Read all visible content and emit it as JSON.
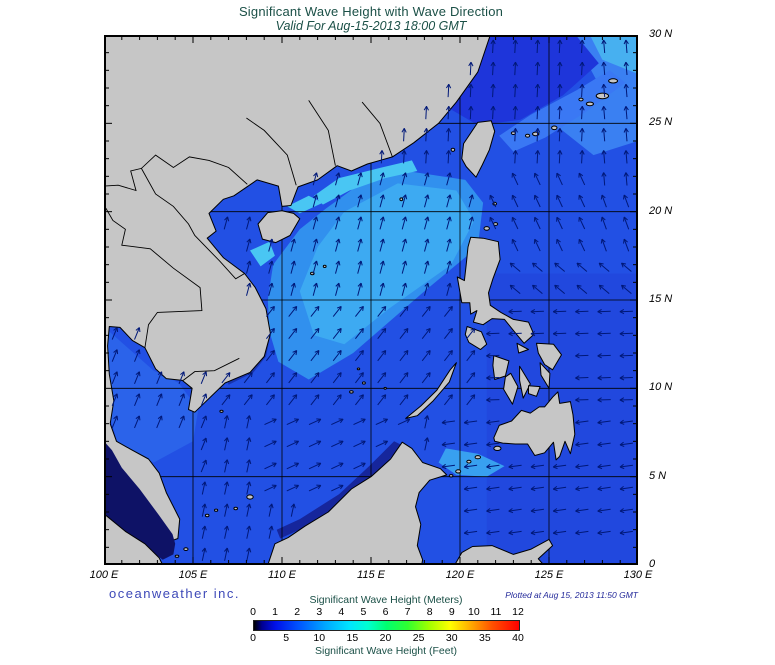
{
  "header": {
    "title": "Significant Wave Height with Wave Direction",
    "subtitle": "Valid For Aug-15-2013 18:00 GMT"
  },
  "map": {
    "lon_min": 100,
    "lon_max": 130,
    "lat_min": 0,
    "lat_max": 30,
    "grid_step_deg": 5,
    "tick_step_deg": 1,
    "lon_labels": [
      {
        "deg": 100,
        "label": "100 E"
      },
      {
        "deg": 105,
        "label": "105 E"
      },
      {
        "deg": 110,
        "label": "110 E"
      },
      {
        "deg": 115,
        "label": "115 E"
      },
      {
        "deg": 120,
        "label": "120 E"
      },
      {
        "deg": 125,
        "label": "125 E"
      },
      {
        "deg": 130,
        "label": "130 E"
      }
    ],
    "lat_labels": [
      {
        "deg": 30,
        "label": "30 N"
      },
      {
        "deg": 25,
        "label": "25 N"
      },
      {
        "deg": 20,
        "label": "20 N"
      },
      {
        "deg": 15,
        "label": "15 N"
      },
      {
        "deg": 10,
        "label": "10 N"
      },
      {
        "deg": 5,
        "label": "5 N"
      },
      {
        "deg": 0,
        "label": "0"
      }
    ],
    "palette": {
      "land": "#c6c6c6",
      "coast": "#000000",
      "ocean_base": "#2250e4",
      "pacific": "#2148de",
      "scs_light": "#3190ee",
      "scs_lighter": "#3daaf2",
      "coastal_cyan": "#49c6f3",
      "north_dark": "#1e35da",
      "ryukyu_se_band": "#3a78f4",
      "upper_right_light": "#3a80f2",
      "corner_light": "#47b0f0",
      "gulf_thailand": "#2b63ea",
      "sulu_light": "#38a0f0",
      "strait_dark": "#0e1266",
      "coastal_dark": "#16269c",
      "viet_coast_dark": "#1834b0",
      "arrow": "#001878",
      "grid": "#000000"
    },
    "wave_direction_regions": [
      [
        127.0,
        130.1,
        21.0,
        30.1,
        355
      ],
      [
        100.0,
        130.1,
        22.0,
        30.1,
        3
      ],
      [
        127.0,
        130.1,
        17.0,
        21.0,
        340
      ],
      [
        121.8,
        130.1,
        17.0,
        22.0,
        335
      ],
      [
        121.8,
        130.1,
        15.0,
        17.0,
        310
      ],
      [
        121.5,
        130.1,
        9.0,
        15.0,
        268
      ],
      [
        118.5,
        130.1,
        0.0,
        9.0,
        262
      ],
      [
        100.0,
        105.8,
        5.0,
        13.5,
        22
      ],
      [
        100.0,
        121.5,
        15.0,
        22.0,
        15
      ],
      [
        100.0,
        121.5,
        9.0,
        15.0,
        38
      ],
      [
        108.5,
        117.5,
        4.0,
        9.0,
        65
      ],
      [
        100.0,
        130.1,
        0.0,
        30.1,
        12
      ]
    ]
  },
  "footer": {
    "branding": "oceanweather inc.",
    "plotted_at": "Plotted at Aug 15, 2013 11:50 GMT"
  },
  "colorbar": {
    "title_meters": "Significant Wave Height (Meters)",
    "meters_ticks": [
      0,
      1,
      2,
      3,
      4,
      5,
      6,
      7,
      8,
      9,
      10,
      11,
      12
    ],
    "title_feet": "Significant Wave Height (Feet)",
    "feet_ticks": [
      0,
      5,
      10,
      15,
      20,
      25,
      30,
      35,
      40
    ],
    "gradient": [
      [
        0.0,
        "#000000"
      ],
      [
        0.03,
        "#000090"
      ],
      [
        0.08,
        "#0010e8"
      ],
      [
        0.17,
        "#0055ff"
      ],
      [
        0.27,
        "#00a8ff"
      ],
      [
        0.36,
        "#00e4ff"
      ],
      [
        0.43,
        "#00ffd0"
      ],
      [
        0.5,
        "#00ff70"
      ],
      [
        0.58,
        "#30ff30"
      ],
      [
        0.66,
        "#a0ff00"
      ],
      [
        0.74,
        "#ffff00"
      ],
      [
        0.82,
        "#ffa800"
      ],
      [
        0.9,
        "#ff5000"
      ],
      [
        1.0,
        "#ff0000"
      ]
    ]
  }
}
